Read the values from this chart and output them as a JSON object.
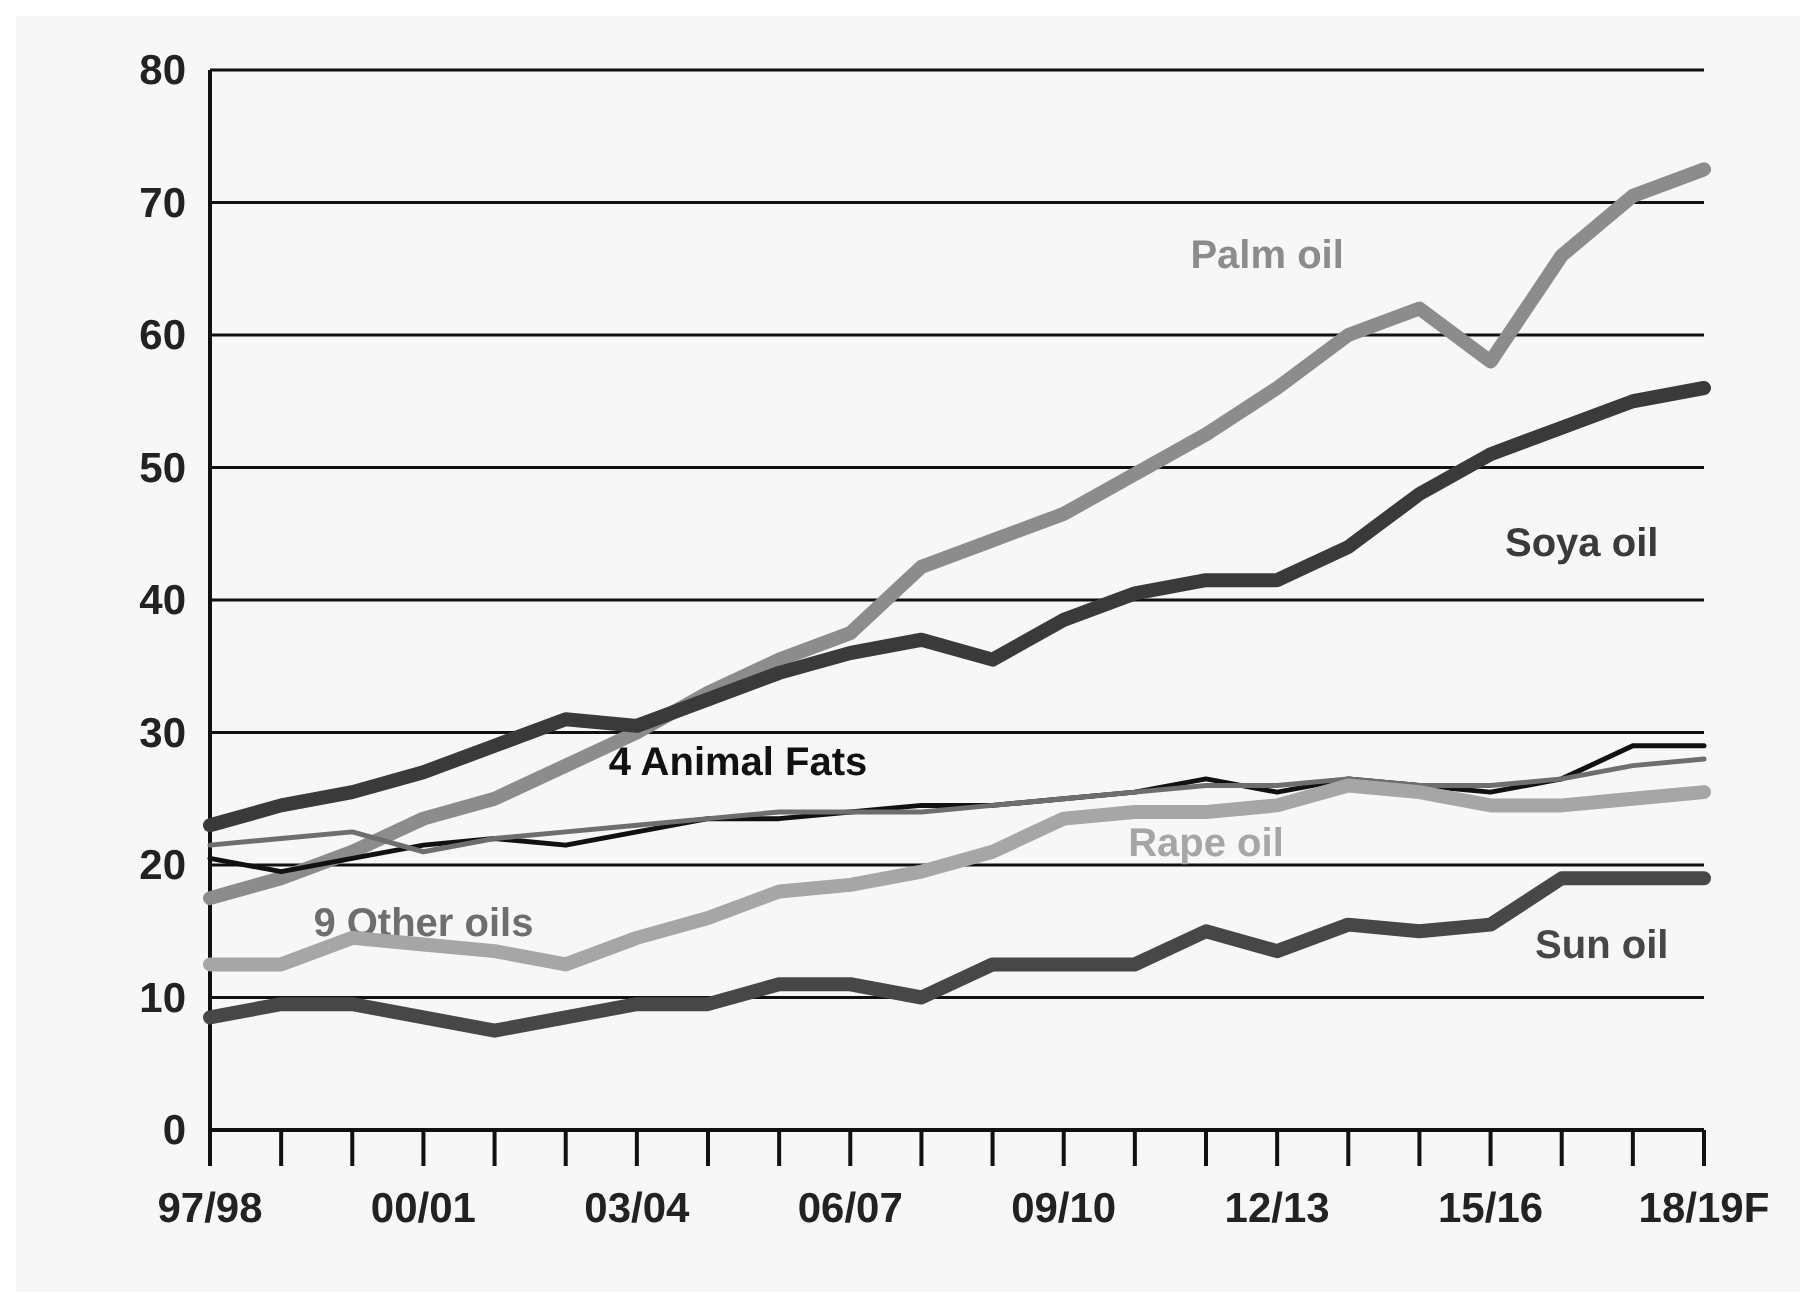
{
  "chart_data": {
    "type": "line",
    "categories": [
      "97/98",
      null,
      null,
      "00/01",
      null,
      null,
      "03/04",
      null,
      null,
      "06/07",
      null,
      null,
      "09/10",
      null,
      null,
      "12/13",
      null,
      null,
      "15/16",
      null,
      null,
      "18/19F"
    ],
    "ylim": [
      0,
      80
    ],
    "yticks": [
      0,
      10,
      20,
      30,
      40,
      50,
      60,
      70,
      80
    ],
    "grid": "y",
    "legend": false,
    "marker": "none",
    "line_style": "solid",
    "series": [
      {
        "name": "Palm oil",
        "color": "#8c8c8c",
        "values": [
          17.5,
          19,
          21,
          23.5,
          25,
          27.5,
          30,
          33,
          35.5,
          37.5,
          42.5,
          44.5,
          46.5,
          49.5,
          52.5,
          56,
          60,
          62,
          58,
          66,
          70.5,
          72.5
        ]
      },
      {
        "name": "Soya oil",
        "color": "#3a3a3a",
        "values": [
          23,
          24.5,
          25.5,
          27,
          29,
          31,
          30.5,
          32.5,
          34.5,
          36,
          37,
          35.5,
          38.5,
          40.5,
          41.5,
          41.5,
          44,
          48,
          51,
          53,
          55,
          56
        ]
      },
      {
        "name": "4 Animal Fats",
        "color": "#111111",
        "values": [
          20.5,
          19.5,
          20.5,
          21.5,
          22,
          21.5,
          22.5,
          23.5,
          23.5,
          24,
          24.5,
          24.5,
          25,
          25.5,
          26.5,
          25.5,
          26.5,
          26,
          25.5,
          26.5,
          29,
          29
        ]
      },
      {
        "name": "9 Other oils",
        "color": "#6e6e6e",
        "values": [
          21.5,
          22,
          22.5,
          21,
          22,
          22.5,
          23,
          23.5,
          24,
          24,
          24,
          24.5,
          25,
          25.5,
          26,
          26,
          26.5,
          26,
          26,
          26.5,
          27.5,
          28
        ]
      },
      {
        "name": "Rape oil",
        "color": "#a6a6a6",
        "values": [
          12.5,
          12.5,
          14.5,
          14,
          13.5,
          12.5,
          14.5,
          16,
          18,
          18.5,
          19.5,
          21,
          23.5,
          24,
          24,
          24.5,
          26,
          25.5,
          24.5,
          24.5,
          25,
          25.5
        ]
      },
      {
        "name": "Sun oil",
        "color": "#474747",
        "values": [
          8.5,
          9.5,
          9.5,
          8.5,
          7.5,
          8.5,
          9.5,
          9.5,
          11,
          11,
          10,
          12.5,
          12.5,
          12.5,
          15,
          13.5,
          15.5,
          15,
          15.5,
          19,
          19,
          19
        ]
      }
    ]
  }
}
